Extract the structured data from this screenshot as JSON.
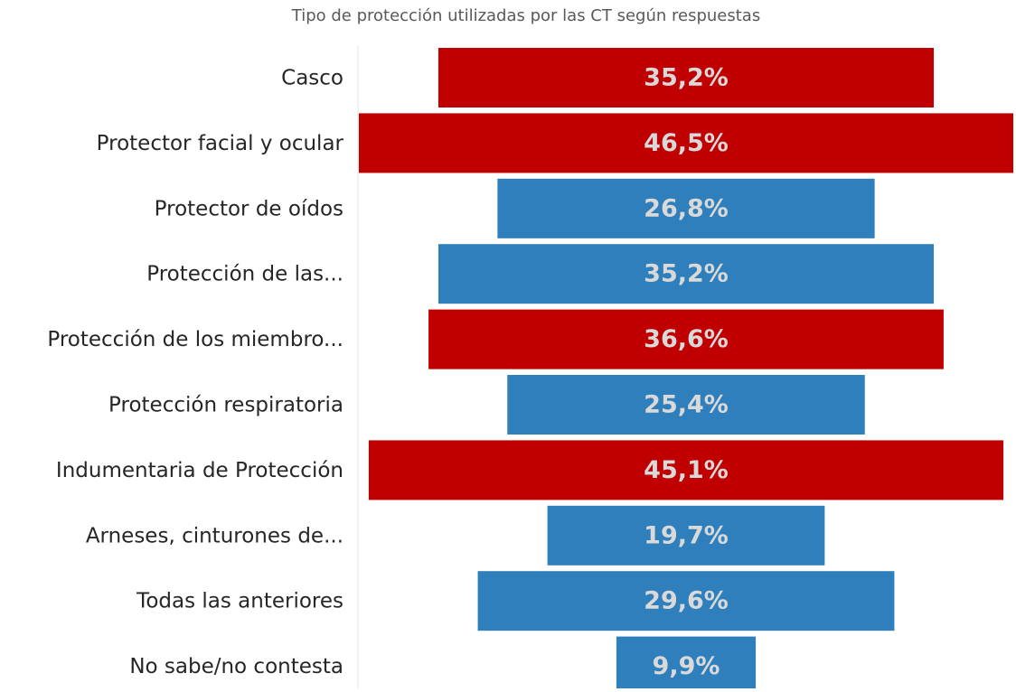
{
  "chart_data": {
    "type": "funnel",
    "title": "Tipo de protección utilizadas por las CT según respuestas",
    "categories": [
      "Casco",
      "Protector facial y ocular",
      "Protector de oídos",
      "Protección de las...",
      "Protección de los miembro...",
      "Protección respiratoria",
      "Indumentaria de Protección",
      "Arneses, cinturones de...",
      "Todas las anteriores",
      "No sabe/no contesta"
    ],
    "values": [
      35.2,
      46.5,
      26.8,
      35.2,
      36.6,
      25.4,
      45.1,
      19.7,
      29.6,
      9.9
    ],
    "value_labels": [
      "35,2%",
      "46,5%",
      "26,8%",
      "35,2%",
      "36,6%",
      "25,4%",
      "45,1%",
      "19,7%",
      "29,6%",
      "9,9%"
    ],
    "colors": [
      "#c00000",
      "#c00000",
      "#2e7fbb",
      "#2e7fbb",
      "#c00000",
      "#2e7fbb",
      "#c00000",
      "#2e7fbb",
      "#2e7fbb",
      "#2e7fbb"
    ]
  }
}
